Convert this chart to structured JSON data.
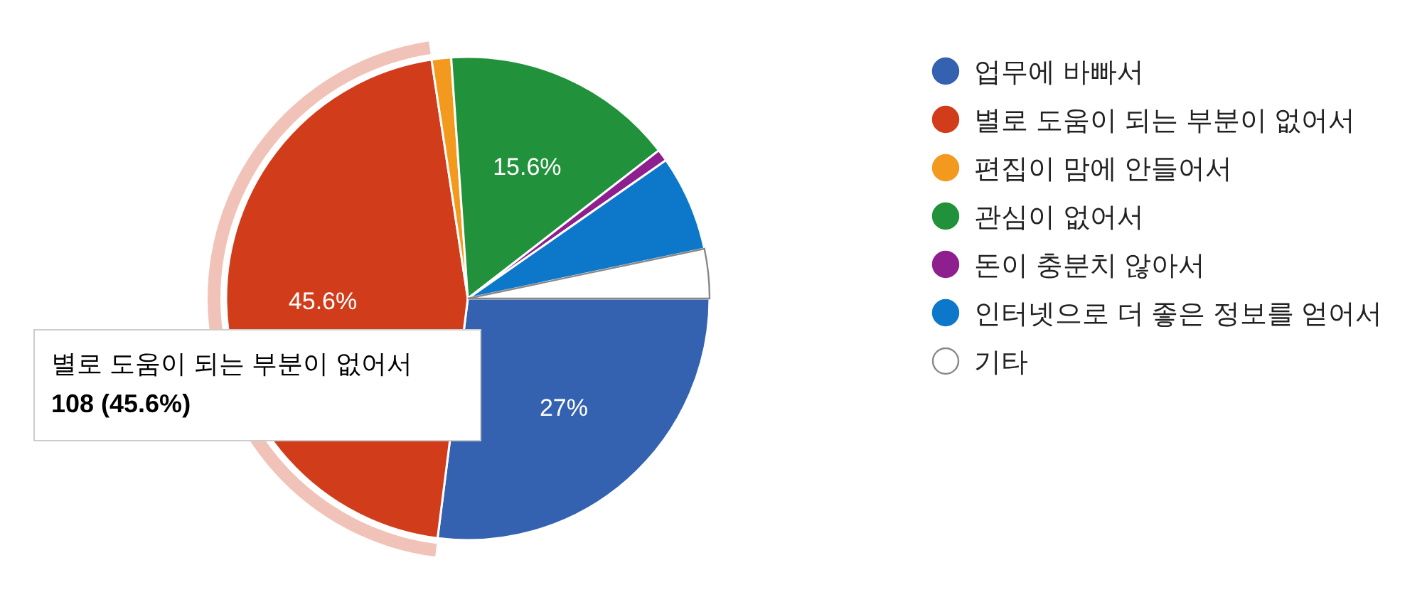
{
  "chart_data": {
    "type": "pie",
    "categories": [
      "업무에 바빠서",
      "별로 도움이 되는 부분이 없어서",
      "편집이 맘에 안들어서",
      "관심이 없어서",
      "돈이 충분치 않아서",
      "인터넷으로 더 좋은 정보를 얻어서",
      "기타"
    ],
    "values": [
      27,
      45.6,
      1.3,
      15.6,
      0.8,
      6.4,
      3.3
    ],
    "colors": [
      "#3462b0",
      "#d13c1a",
      "#f39a1e",
      "#21923b",
      "#8e1f8f",
      "#0d78ca",
      "#ffffff"
    ],
    "value_labels": [
      "27%",
      "45.6%",
      null,
      "15.6%",
      null,
      null,
      null
    ],
    "legend": "right",
    "annotations": [
      "별로 도움이 되는 부분이 없어서",
      "108 (45.6%)"
    ]
  }
}
